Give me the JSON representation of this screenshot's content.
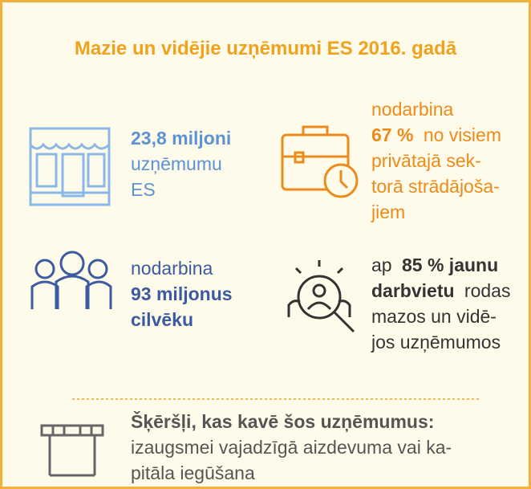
{
  "title": "Mazie un vidējie uzņēmumi ES 2016. gadā",
  "blocks": [
    {
      "lines": [
        [
          "23,8 miljoni"
        ],
        [
          "uzņēmumu"
        ],
        [
          "ES"
        ]
      ]
    },
    {
      "lines": [
        [
          "nodarbina"
        ],
        [
          "67 %",
          "no visiem"
        ],
        [
          "privātajā sek-"
        ],
        [
          "torā strādājoša-"
        ],
        [
          "jiem"
        ]
      ]
    },
    {
      "lines": [
        [
          "nodarbina"
        ],
        [
          "93 miljonus"
        ],
        [
          "cilvēku"
        ]
      ]
    },
    {
      "lines": [
        [
          "ap",
          "85 % jaunu"
        ],
        [
          "darbvietu",
          "rodas"
        ],
        [
          "mazos un vidē-"
        ],
        [
          "jos uzņēmumos"
        ]
      ]
    },
    {
      "lines": [
        [
          "Šķēršļi, kas kavē šos uzņēmumus:"
        ],
        [
          "izaugsmei vajadzīgā aizdevuma vai ka-"
        ],
        [
          "pitāla iegūšana"
        ]
      ]
    }
  ]
}
